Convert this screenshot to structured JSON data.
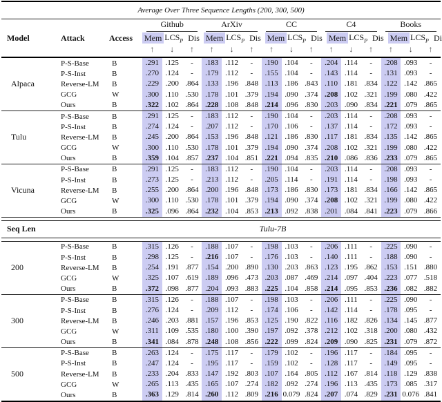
{
  "table": {
    "title": "Average Over Three Sequence Lengths (200, 300, 500)",
    "left_headers": [
      "Model",
      "Attack",
      "Access"
    ],
    "groups": [
      "Github",
      "ArXiv",
      "CC",
      "C4",
      "Books"
    ],
    "subcols": [
      {
        "label": "Mem",
        "sub": "",
        "highlight": true
      },
      {
        "label": "LCS",
        "sub": "P",
        "highlight": false
      },
      {
        "label": "Dis",
        "sub": "",
        "highlight": false
      }
    ],
    "arrows": [
      "↑",
      "↓",
      "↑"
    ],
    "highlight_color": "#ccccf2",
    "section2": {
      "left_header": "Seq Len",
      "title": "Tulu-7B"
    },
    "blocks_top": [
      {
        "label": "Alpaca",
        "rows": [
          {
            "attack": "P-S-Base",
            "access": "B",
            "values": [
              ".291",
              ".125",
              "-",
              ".183",
              ".112",
              "-",
              ".190",
              ".104",
              "-",
              ".204",
              ".114",
              "-",
              ".208",
              ".093",
              "-"
            ],
            "bold": []
          },
          {
            "attack": "P-S-Inst",
            "access": "B",
            "values": [
              ".270",
              ".124",
              "-",
              ".179",
              ".112",
              "-",
              ".155",
              ".104",
              "-",
              ".143",
              ".114",
              "-",
              ".131",
              ".093",
              "-"
            ],
            "bold": []
          },
          {
            "attack": "Reverse-LM",
            "access": "B",
            "values": [
              ".229",
              ".200",
              ".864",
              ".133",
              ".196",
              ".848",
              ".113",
              ".186",
              ".843",
              ".110",
              ".181",
              ".834",
              ".122",
              ".142",
              ".865"
            ],
            "bold": []
          },
          {
            "attack": "GCG",
            "access": "W",
            "values": [
              ".300",
              ".110",
              ".530",
              ".178",
              ".101",
              ".379",
              ".194",
              ".090",
              ".374",
              ".208",
              ".102",
              ".321",
              ".199",
              ".080",
              ".422"
            ],
            "bold": [
              9
            ]
          },
          {
            "attack": "Ours",
            "access": "B",
            "values": [
              ".322",
              ".102",
              ".864",
              ".228",
              ".108",
              ".848",
              ".214",
              ".096",
              ".830",
              ".203",
              ".090",
              ".834",
              ".221",
              ".079",
              ".865"
            ],
            "bold": [
              0,
              3,
              6,
              12
            ]
          }
        ]
      },
      {
        "label": "Tulu",
        "rows": [
          {
            "attack": "P-S-Base",
            "access": "B",
            "values": [
              ".291",
              ".125",
              "-",
              ".183",
              ".112",
              "-",
              ".190",
              ".104",
              "-",
              ".203",
              ".114",
              "-",
              ".208",
              ".093",
              "-"
            ],
            "bold": []
          },
          {
            "attack": "P-S-Inst",
            "access": "B",
            "values": [
              ".274",
              ".124",
              "-",
              ".207",
              ".112",
              "-",
              ".170",
              ".106",
              "-",
              ".137",
              ".114",
              "-",
              ".172",
              ".093",
              "-"
            ],
            "bold": []
          },
          {
            "attack": "Reverse-LM",
            "access": "B",
            "values": [
              ".245",
              ".200",
              ".864",
              ".153",
              ".196",
              ".848",
              ".121",
              ".186",
              ".830",
              ".117",
              ".181",
              ".834",
              ".135",
              ".142",
              ".865"
            ],
            "bold": []
          },
          {
            "attack": "GCG",
            "access": "W",
            "values": [
              ".300",
              ".110",
              ".530",
              ".178",
              ".101",
              ".379",
              ".194",
              ".090",
              ".374",
              ".208",
              ".102",
              ".321",
              ".199",
              ".080",
              ".422"
            ],
            "bold": []
          },
          {
            "attack": "Ours",
            "access": "B",
            "values": [
              ".359",
              ".104",
              ".857",
              ".237",
              ".104",
              ".851",
              ".221",
              ".094",
              ".835",
              ".210",
              ".086",
              ".836",
              ".233",
              ".079",
              ".865"
            ],
            "bold": [
              0,
              3,
              6,
              9,
              12
            ]
          }
        ]
      },
      {
        "label": "Vicuna",
        "rows": [
          {
            "attack": "P-S-Base",
            "access": "B",
            "values": [
              ".291",
              ".125",
              "-",
              ".183",
              ".112",
              "-",
              ".190",
              ".104",
              "-",
              ".203",
              ".114",
              "-",
              ".208",
              ".093",
              "-"
            ],
            "bold": []
          },
          {
            "attack": "P-S-Inst",
            "access": "B",
            "values": [
              ".273",
              ".125",
              "-",
              ".213",
              ".112",
              "-",
              ".205",
              ".114",
              "-",
              ".191",
              ".114",
              "-",
              ".198",
              ".093",
              "-"
            ],
            "bold": []
          },
          {
            "attack": "Reverse-LM",
            "access": "B",
            "values": [
              ".255",
              ".200",
              ".864",
              ".200",
              ".196",
              ".848",
              ".173",
              ".186",
              ".830",
              ".173",
              ".181",
              ".834",
              ".166",
              ".142",
              ".865"
            ],
            "bold": []
          },
          {
            "attack": "GCG",
            "access": "W",
            "values": [
              ".300",
              ".110",
              ".530",
              ".178",
              ".101",
              ".379",
              ".194",
              ".090",
              ".374",
              ".208",
              ".102",
              ".321",
              ".199",
              ".080",
              ".422"
            ],
            "bold": [
              9
            ]
          },
          {
            "attack": "Ours",
            "access": "B",
            "values": [
              ".325",
              ".096",
              ".864",
              ".232",
              ".104",
              ".853",
              ".213",
              ".092",
              ".838",
              ".201",
              ".084",
              ".841",
              ".223",
              ".079",
              ".866"
            ],
            "bold": [
              0,
              3,
              6,
              12
            ]
          }
        ]
      }
    ],
    "blocks_bottom": [
      {
        "label": "200",
        "rows": [
          {
            "attack": "P-S-Base",
            "access": "B",
            "values": [
              ".315",
              ".126",
              "-",
              ".188",
              ".107",
              "-",
              ".198",
              ".103",
              "-",
              ".206",
              ".111",
              "-",
              ".225",
              ".090",
              "-"
            ],
            "bold": []
          },
          {
            "attack": "P-S-Inst",
            "access": "B",
            "values": [
              ".298",
              ".125",
              "-",
              ".216",
              ".107",
              "-",
              ".176",
              ".103",
              "-",
              ".140",
              ".111",
              "-",
              ".188",
              ".090",
              "-"
            ],
            "bold": [
              3
            ]
          },
          {
            "attack": "Reverse-LM",
            "access": "B",
            "values": [
              ".254",
              ".191",
              ".877",
              ".154",
              ".200",
              ".890",
              ".130",
              ".203",
              ".863",
              ".123",
              ".195",
              ".862",
              ".153",
              ".151",
              ".880"
            ],
            "bold": []
          },
          {
            "attack": "GCG",
            "access": "W",
            "values": [
              ".325",
              ".107",
              ".619",
              ".189",
              ".096",
              ".473",
              ".203",
              ".087",
              ".469",
              ".214",
              ".097",
              ".404",
              ".223",
              ".077",
              ".518"
            ],
            "bold": []
          },
          {
            "attack": "Ours",
            "access": "B",
            "values": [
              ".372",
              ".098",
              ".877",
              ".204",
              ".093",
              ".883",
              ".225",
              ".104",
              ".858",
              ".214",
              ".095",
              ".853",
              ".236",
              ".082",
              ".882"
            ],
            "bold": [
              0,
              6,
              9,
              12
            ]
          }
        ]
      },
      {
        "label": "300",
        "rows": [
          {
            "attack": "P-S-Base",
            "access": "B",
            "values": [
              ".315",
              ".126",
              "-",
              ".188",
              ".107",
              "-",
              ".198",
              ".103",
              "-",
              ".206",
              ".111",
              "-",
              ".225",
              ".090",
              "-"
            ],
            "bold": []
          },
          {
            "attack": "P-S-Inst",
            "access": "B",
            "values": [
              ".276",
              ".124",
              "-",
              ".209",
              ".112",
              "-",
              ".174",
              ".106",
              "-",
              ".142",
              ".114",
              "-",
              ".178",
              ".095",
              "-"
            ],
            "bold": []
          },
          {
            "attack": "Reverse-LM",
            "access": "B",
            "values": [
              ".246",
              ".203",
              ".881",
              ".157",
              ".196",
              ".853",
              ".125",
              ".190",
              ".822",
              ".116",
              ".182",
              ".826",
              ".134",
              ".145",
              ".877"
            ],
            "bold": []
          },
          {
            "attack": "GCG",
            "access": "W",
            "values": [
              ".311",
              ".109",
              ".535",
              ".180",
              ".100",
              ".390",
              ".197",
              ".092",
              ".378",
              ".212",
              ".102",
              ".318",
              ".200",
              ".080",
              ".432"
            ],
            "bold": []
          },
          {
            "attack": "Ours",
            "access": "B",
            "values": [
              ".341",
              ".084",
              ".878",
              ".248",
              ".108",
              ".856",
              ".222",
              ".099",
              ".824",
              ".209",
              ".090",
              ".825",
              ".231",
              ".079",
              ".872"
            ],
            "bold": [
              0,
              3,
              6,
              9,
              12
            ]
          }
        ]
      },
      {
        "label": "500",
        "rows": [
          {
            "attack": "P-S-Base",
            "access": "B",
            "values": [
              ".263",
              ".124",
              "-",
              ".175",
              ".117",
              "-",
              ".179",
              ".102",
              "-",
              ".196",
              ".117",
              "-",
              ".184",
              ".095",
              "-"
            ],
            "bold": []
          },
          {
            "attack": "P-S-Inst",
            "access": "B",
            "values": [
              ".247",
              ".124",
              "-",
              ".195",
              ".117",
              "-",
              ".159",
              ".102",
              "-",
              ".128",
              ".117",
              "-",
              ".149",
              ".095",
              "-"
            ],
            "bold": []
          },
          {
            "attack": "Reverse-LM",
            "access": "B",
            "values": [
              ".233",
              ".204",
              ".833",
              ".147",
              ".192",
              ".803",
              ".107",
              ".164",
              ".805",
              ".112",
              ".167",
              ".814",
              ".118",
              ".129",
              ".838"
            ],
            "bold": []
          },
          {
            "attack": "GCG",
            "access": "W",
            "values": [
              ".265",
              ".113",
              ".435",
              ".165",
              ".107",
              ".274",
              ".182",
              ".092",
              ".274",
              ".196",
              ".113",
              ".435",
              ".173",
              ".085",
              ".317"
            ],
            "bold": []
          },
          {
            "attack": "Ours",
            "access": "B",
            "values": [
              ".363",
              ".129",
              ".814",
              ".260",
              ".112",
              ".809",
              ".216",
              "0.079",
              ".824",
              ".207",
              ".074",
              ".829",
              ".231",
              "0.076",
              ".841"
            ],
            "bold": [
              0,
              3,
              6,
              9,
              12
            ]
          }
        ]
      }
    ]
  }
}
